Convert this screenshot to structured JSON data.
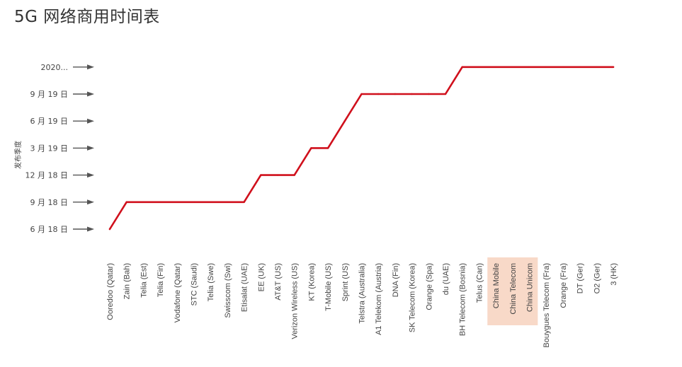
{
  "title": "5G 网络商用时间表",
  "chart_data": {
    "type": "line",
    "title": "5G 网络商用时间表",
    "xlabel": "",
    "ylabel": "发布季度",
    "y_categories": [
      "6 月 18 日",
      "9 月 18 日",
      "12 月 18 日",
      "3 月 19 日",
      "6 月 19 日",
      "9 月 19 日",
      "2020..."
    ],
    "categories": [
      "Ooredoo (Qatar)",
      "Zain (Bah)",
      "Telia (Est)",
      "Telia (Fin)",
      "Vodafone (Qatar)",
      "STC (Saudi)",
      "Telia (Swe)",
      "Swisscom (Swi)",
      "Etisalat (UAE)",
      "EE (UK)",
      "AT&T (US)",
      "Verizon Wireless (US)",
      "KT (Korea)",
      "T-Mobile (US)",
      "Sprint (US)",
      "Telstra (Australia)",
      "A1 Telekom (Austria)",
      "DNA (Fin)",
      "SK Telecom (Korea)",
      "Orange (Spa)",
      "du (UAE)",
      "BH Telecom (Bosnia)",
      "Telus (Can)",
      "China Mobile",
      "China Telecom",
      "China Unicom",
      "Bouygues Telecom (Fra)",
      "Orange (Fra)",
      "DT (Ger)",
      "O2 (Ger)",
      "3 (HK)"
    ],
    "series": [
      {
        "values": [
          "6 月 18 日",
          "9 月 18 日",
          "9 月 18 日",
          "9 月 18 日",
          "9 月 18 日",
          "9 月 18 日",
          "9 月 18 日",
          "9 月 18 日",
          "9 月 18 日",
          "12 月 18 日",
          "12 月 18 日",
          "12 月 18 日",
          "3 月 19 日",
          "3 月 19 日",
          "6 月 19 日",
          "9 月 19 日",
          "9 月 19 日",
          "9 月 19 日",
          "9 月 19 日",
          "9 月 19 日",
          "9 月 19 日",
          "2020...",
          "2020...",
          "2020...",
          "2020...",
          "2020...",
          "2020...",
          "2020...",
          "2020...",
          "2020...",
          "2020..."
        ]
      }
    ],
    "highlighted_categories": [
      "China Mobile",
      "China Telecom",
      "China Unicom"
    ],
    "colors": {
      "line": "#d0101c",
      "highlight": "#f8d9c8",
      "arrow": "#555555"
    },
    "grid": false
  }
}
